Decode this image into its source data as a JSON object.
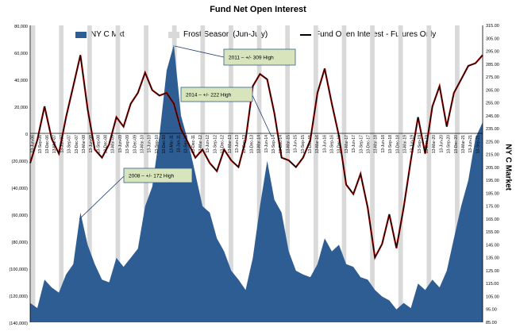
{
  "chart_data": {
    "type": "area",
    "title": "Fund Net Open Interest",
    "y2label": "NY C Market",
    "legend": [
      "NY C Mkt",
      "Frost Season (Jun-July)",
      "Fund Open Interest - Futures Only"
    ],
    "y_left_ticks": [
      "80,000",
      "60,000",
      "40,000",
      "20,000",
      "0",
      "(20,000)",
      "(40,000)",
      "(60,000)",
      "(80,000)",
      "(100,000)",
      "(120,000)",
      "(140,000)"
    ],
    "y_left_range": [
      -140000,
      80000
    ],
    "y_right_range": [
      85,
      315
    ],
    "y_right_ticks": [
      "315.00",
      "305.00",
      "295.00",
      "285.00",
      "275.00",
      "265.00",
      "255.00",
      "245.00",
      "235.00",
      "225.00",
      "215.00",
      "205.00",
      "195.00",
      "185.00",
      "175.00",
      "165.00",
      "155.00",
      "145.00",
      "135.00",
      "125.00",
      "115.00",
      "105.00",
      "95.00",
      "85.00"
    ],
    "x_ticks": [
      "13-Jun-06",
      "13-Sep-06",
      "13-Dec-06",
      "13-Mar-07",
      "13-Jun-07",
      "13-Sep-07",
      "13-Dec-07",
      "13-Mar-08",
      "13-Jun-08",
      "13-Sep-08",
      "13-Dec-08",
      "13-Mar-09",
      "13-Jun-09",
      "13-Sep-09",
      "13-Dec-09",
      "13-Mar-10",
      "13-Jun-10",
      "13-Sep-10",
      "13-Dec-10",
      "13-Mar-11",
      "13-Jun-11",
      "13-Sep-11",
      "13-Dec-11",
      "13-Mar-12",
      "13-Jun-12",
      "13-Sep-12",
      "13-Dec-12",
      "13-Mar-13",
      "13-Jun-13",
      "13-Sep-13",
      "13-Dec-13",
      "13-Mar-14",
      "13-Jun-14",
      "13-Sep-14",
      "13-Dec-14",
      "13-Mar-15",
      "13-Jun-15",
      "13-Sep-15",
      "13-Dec-15",
      "13-Mar-16",
      "13-Jun-16",
      "13-Sep-16",
      "13-Dec-16",
      "13-Mar-17",
      "13-Jun-17",
      "13-Sep-17",
      "13-Dec-17",
      "13-Mar-18",
      "13-Jun-18",
      "13-Sep-18",
      "13-Dec-18",
      "13-Mar-19",
      "13-Jun-19",
      "13-Sep-19",
      "13-Dec-19",
      "13-Mar-20",
      "13-Jun-20",
      "13-Sep-20",
      "13-Dec-20",
      "13-Mar-21",
      "13-Jun-21",
      "13-Sep-21"
    ],
    "nyc_price": [
      100,
      96,
      118,
      112,
      108,
      122,
      130,
      170,
      145,
      130,
      118,
      116,
      135,
      128,
      135,
      142,
      175,
      190,
      230,
      280,
      300,
      245,
      225,
      200,
      175,
      170,
      150,
      140,
      125,
      118,
      110,
      135,
      175,
      210,
      180,
      170,
      140,
      125,
      122,
      120,
      130,
      150,
      140,
      145,
      130,
      128,
      120,
      118,
      110,
      105,
      102,
      95,
      100,
      96,
      115,
      110,
      118,
      112,
      125,
      150,
      175,
      195,
      228,
      240
    ],
    "fund_oi": [
      -22000,
      -5000,
      20000,
      -4000,
      -15000,
      12000,
      35000,
      58000,
      18000,
      -12000,
      -18000,
      -8000,
      12000,
      5000,
      22000,
      30000,
      45000,
      32000,
      28000,
      30000,
      22000,
      3000,
      -7000,
      -18000,
      -12000,
      -22000,
      -28000,
      -12000,
      -20000,
      -25000,
      -5000,
      35000,
      44000,
      40000,
      15000,
      -18000,
      -20000,
      -25000,
      -18000,
      -5000,
      30000,
      48000,
      22000,
      -2000,
      -38000,
      -45000,
      -30000,
      -55000,
      -92000,
      -82000,
      -60000,
      -85000,
      -55000,
      -20000,
      12000,
      -15000,
      20000,
      35000,
      5000,
      30000,
      40000,
      50000,
      52000,
      58000
    ],
    "frost_seasons": [
      "2006",
      "2007",
      "2008",
      "2009",
      "2010",
      "2011",
      "2012",
      "2013",
      "2014",
      "2015",
      "2016",
      "2017",
      "2018",
      "2019",
      "2020",
      "2021"
    ],
    "annotations": [
      {
        "text": "2011 – +/- 309 High"
      },
      {
        "text": "2014 – +/- 222 High"
      },
      {
        "text": "2008 – +/- 172 High"
      }
    ]
  }
}
